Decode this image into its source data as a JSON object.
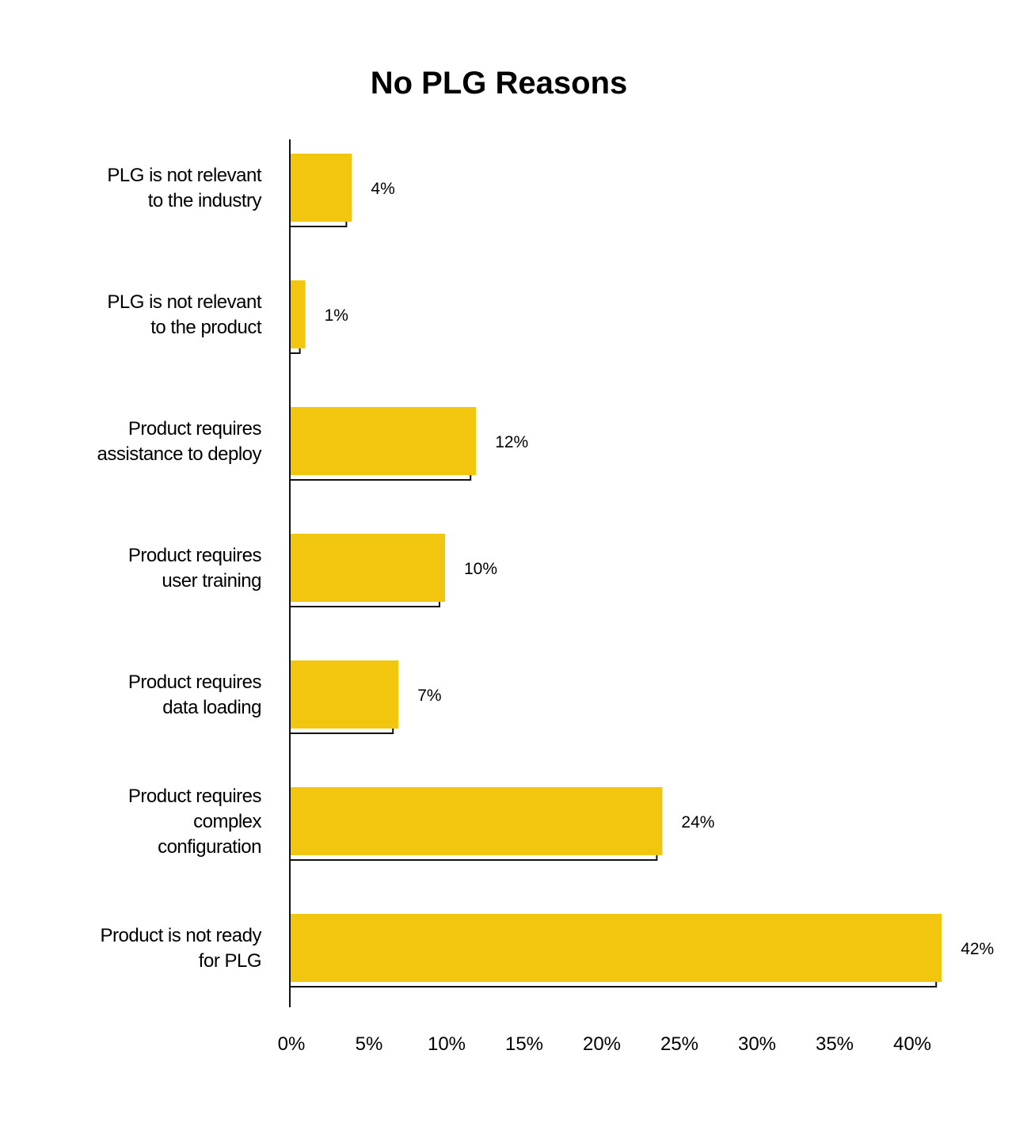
{
  "chart_data": {
    "type": "bar",
    "orientation": "horizontal",
    "title": "No PLG Reasons",
    "xlabel": "",
    "ylabel": "",
    "categories": [
      [
        "PLG is not relevant",
        "to the industry"
      ],
      [
        "PLG is not relevant",
        "to the product"
      ],
      [
        "Product requires",
        "assistance to deploy"
      ],
      [
        "Product requires",
        "user training"
      ],
      [
        "Product requires",
        "data loading"
      ],
      [
        "Product requires",
        "complex",
        "configuration"
      ],
      [
        "Product is not ready",
        "for PLG"
      ]
    ],
    "values": [
      4,
      1,
      12,
      10,
      7,
      24,
      42
    ],
    "value_labels": [
      "4%",
      "1%",
      "12%",
      "10%",
      "7%",
      "24%",
      "42%"
    ],
    "x_ticks": [
      0,
      5,
      10,
      15,
      20,
      25,
      30,
      35,
      40
    ],
    "x_tick_labels": [
      "0%",
      "5%",
      "10%",
      "15%",
      "20%",
      "25%",
      "30%",
      "35%",
      "40%"
    ],
    "xlim": [
      0,
      40
    ],
    "bar_color": "#F2C60E",
    "shadow_color": "#111111",
    "grid": false,
    "legend": "none"
  }
}
